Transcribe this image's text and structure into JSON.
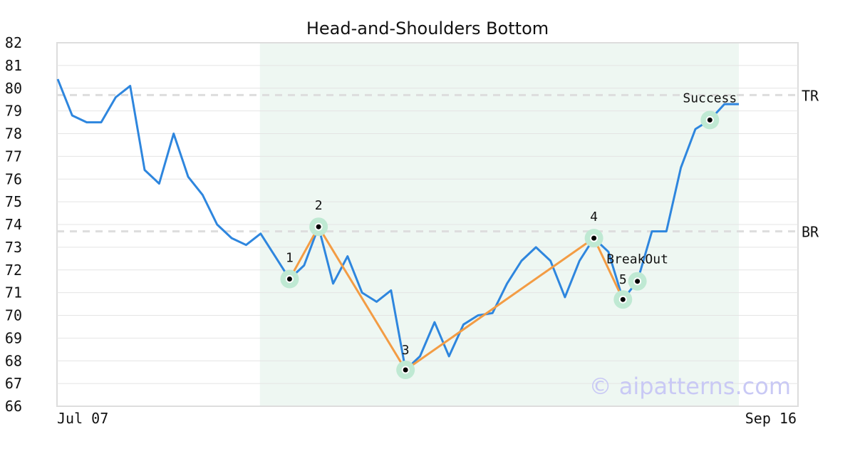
{
  "chart_data": {
    "type": "line",
    "title": "Head-and-Shoulders Bottom",
    "ylim": [
      66,
      82
    ],
    "yticks": [
      66,
      67,
      68,
      69,
      70,
      71,
      72,
      73,
      74,
      75,
      76,
      77,
      78,
      79,
      80,
      81,
      82
    ],
    "xlabels": {
      "start": "Jul 07",
      "end": "Sep 16"
    },
    "grid": true,
    "series": [
      {
        "values": [
          80.4,
          78.8,
          78.5,
          78.5,
          79.6,
          80.1,
          76.4,
          75.8,
          78.0,
          76.1,
          75.3,
          74.0,
          73.4,
          73.1,
          73.6,
          72.6,
          71.6,
          72.2,
          73.9,
          71.4,
          72.6,
          71.0,
          70.6,
          71.1,
          67.6,
          68.2,
          69.7,
          68.2,
          69.6,
          70.0,
          70.1,
          71.4,
          72.4,
          73.0,
          72.4,
          70.8,
          72.4,
          73.4,
          72.8,
          70.7,
          71.5,
          73.7,
          73.7,
          76.5,
          78.2,
          78.6,
          79.3,
          79.3
        ],
        "color": "#2e86de"
      }
    ],
    "pattern_region": {
      "start_index": 14,
      "end_index": 47,
      "color": "#eef7f2"
    },
    "pattern_points": [
      {
        "label": "1",
        "index": 16,
        "value": 71.6
      },
      {
        "label": "2",
        "index": 18,
        "value": 73.9
      },
      {
        "label": "3",
        "index": 24,
        "value": 67.6
      },
      {
        "label": "4",
        "index": 37,
        "value": 73.4
      },
      {
        "label": "5",
        "index": 39,
        "value": 70.7
      }
    ],
    "pattern_line_color": "#f39c44",
    "markers": [
      {
        "label": "BreakOut",
        "index": 40,
        "value": 71.5
      },
      {
        "label": "Success",
        "index": 45,
        "value": 78.6
      }
    ],
    "reference_lines": [
      {
        "label": "TR",
        "value": 79.7
      },
      {
        "label": "BR",
        "value": 73.7
      }
    ],
    "watermark": "© aipatterns.com"
  }
}
